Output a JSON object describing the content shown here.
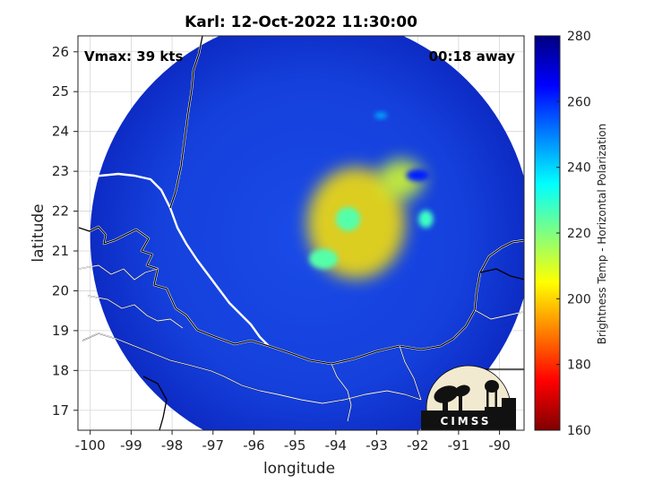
{
  "chart_data": {
    "type": "heatmap",
    "title": "Karl: 12-Oct-2022 11:30:00",
    "xlabel": "longitude",
    "ylabel": "latitude",
    "xlim": [
      -100.3,
      -89.4
    ],
    "ylim": [
      16.5,
      26.4
    ],
    "xticks": [
      -100,
      -99,
      -98,
      -97,
      -96,
      -95,
      -94,
      -93,
      -92,
      -91,
      -90
    ],
    "yticks": [
      17,
      18,
      19,
      20,
      21,
      22,
      23,
      24,
      25,
      26
    ],
    "grid": true,
    "colorbar": {
      "label": "Brightness Temp - Horizontal Polarization",
      "range": [
        160,
        280
      ],
      "ticks": [
        160,
        180,
        200,
        220,
        240,
        260,
        280
      ],
      "colormap": "jet"
    },
    "annotations": {
      "vmax": "Vmax: 39 kts",
      "away": "00:18 away"
    },
    "swath": {
      "center": [
        -94.6,
        21.35
      ],
      "radius_deg": 5.4,
      "background_temp": 266
    },
    "cold_features": [
      {
        "lon": -92.0,
        "lat": 22.9,
        "temp": 178,
        "rx": 0.28,
        "ry": 0.15
      },
      {
        "lon": -92.9,
        "lat": 24.4,
        "temp": 195,
        "rx": 0.15,
        "ry": 0.08
      },
      {
        "lon": -93.7,
        "lat": 21.8,
        "temp": 215,
        "rx": 0.3,
        "ry": 0.3
      },
      {
        "lon": -94.3,
        "lat": 20.8,
        "temp": 215,
        "rx": 0.35,
        "ry": 0.25
      },
      {
        "lon": -91.8,
        "lat": 21.8,
        "temp": 212,
        "rx": 0.18,
        "ry": 0.22
      },
      {
        "lon": -92.4,
        "lat": 22.8,
        "temp": 230,
        "rx": 0.55,
        "ry": 0.5
      },
      {
        "lon": -93.5,
        "lat": 21.7,
        "temp": 238,
        "rx": 1.2,
        "ry": 1.4
      }
    ],
    "logo": {
      "text": "CIMSS"
    }
  }
}
